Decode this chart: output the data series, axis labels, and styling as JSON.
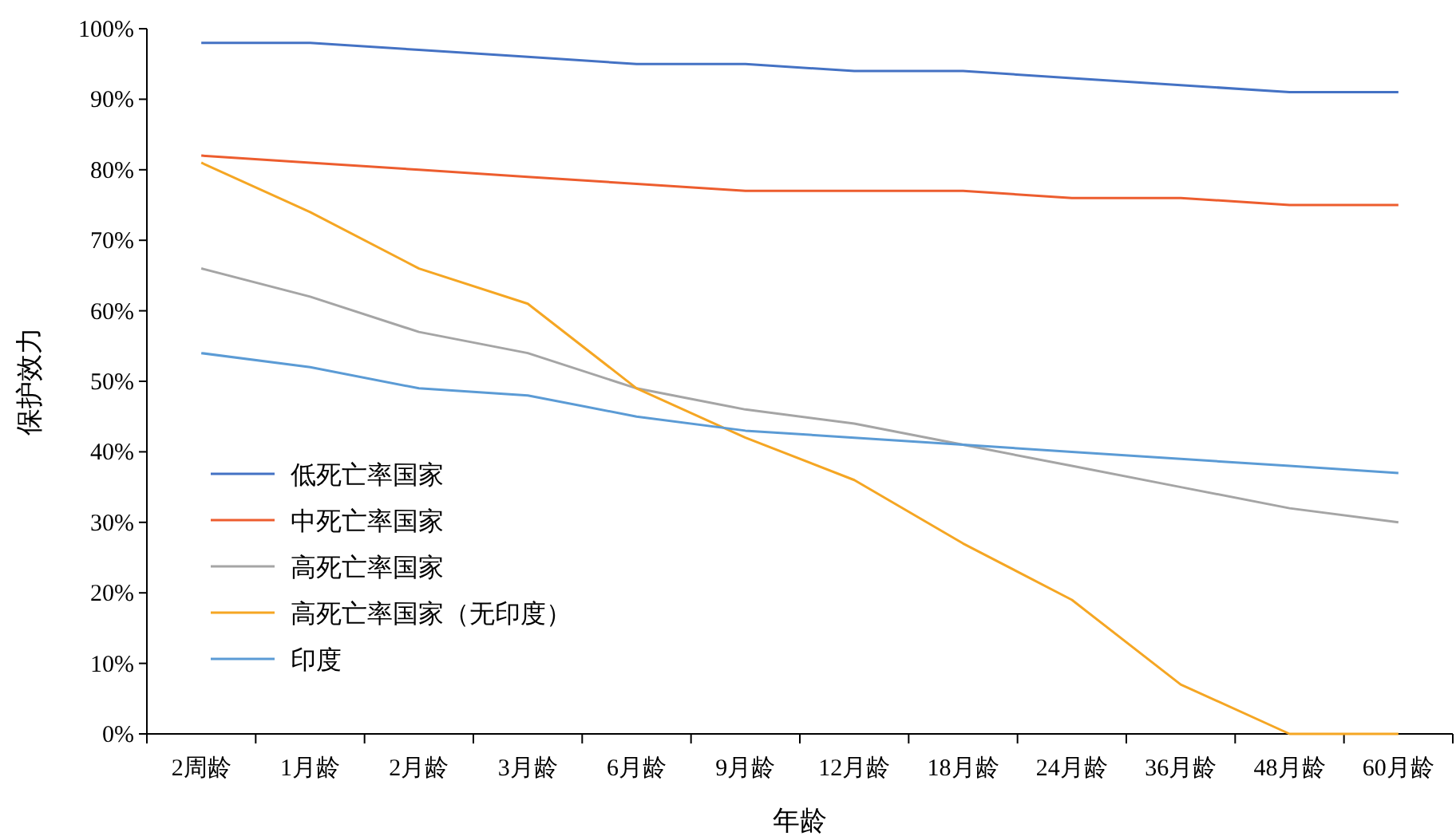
{
  "chart_data": {
    "type": "line",
    "xlabel": "年龄",
    "ylabel": "保护效力",
    "categories": [
      "2周龄",
      "1月龄",
      "2月龄",
      "3月龄",
      "6月龄",
      "9月龄",
      "12月龄",
      "18月龄",
      "24月龄",
      "36月龄",
      "48月龄",
      "60月龄"
    ],
    "series": [
      {
        "name": "低死亡率国家",
        "color": "#4472c4",
        "values": [
          98,
          98,
          97,
          96,
          95,
          95,
          94,
          94,
          93,
          92,
          91,
          91
        ]
      },
      {
        "name": "中死亡率国家",
        "color": "#ed5d2e",
        "values": [
          82,
          81,
          80,
          79,
          78,
          77,
          77,
          77,
          76,
          76,
          75,
          75
        ]
      },
      {
        "name": "高死亡率国家",
        "color": "#a5a5a5",
        "values": [
          66,
          62,
          57,
          54,
          49,
          46,
          44,
          41,
          38,
          35,
          32,
          30
        ]
      },
      {
        "name": "高死亡率国家（无印度）",
        "color": "#f5a623",
        "values": [
          81,
          74,
          66,
          61,
          49,
          42,
          36,
          27,
          19,
          7,
          0,
          0
        ]
      },
      {
        "name": "印度",
        "color": "#5b9bd5",
        "values": [
          54,
          52,
          49,
          48,
          45,
          43,
          42,
          41,
          40,
          39,
          38,
          37
        ]
      }
    ],
    "ylim": [
      0,
      100
    ],
    "yticks": [
      {
        "value": 0,
        "label": "0%"
      },
      {
        "value": 10,
        "label": "10%"
      },
      {
        "value": 20,
        "label": "20%"
      },
      {
        "value": 30,
        "label": "30%"
      },
      {
        "value": 40,
        "label": "40%"
      },
      {
        "value": 50,
        "label": "50%"
      },
      {
        "value": 60,
        "label": "60%"
      },
      {
        "value": 70,
        "label": "70%"
      },
      {
        "value": 80,
        "label": "80%"
      },
      {
        "value": 90,
        "label": "90%"
      },
      {
        "value": 100,
        "label": "100%"
      }
    ],
    "legend": "bottom left",
    "line_style": "solid"
  }
}
